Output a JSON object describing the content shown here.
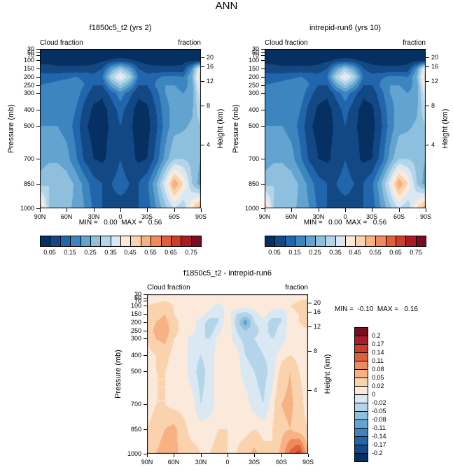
{
  "title": "ANN",
  "palette": [
    "#053061",
    "#124984",
    "#2166ac",
    "#3d85bf",
    "#62a3cf",
    "#8ec0dd",
    "#b4d5e9",
    "#d9e8f3",
    "#fbeadb",
    "#fad3ae",
    "#f7b183",
    "#ef8a5c",
    "#e0603c",
    "#cb3e2c",
    "#ab1b26",
    "#7a0c20"
  ],
  "axes": {
    "pressure_label": "Pressure (mb)",
    "height_label": "Height (km)",
    "pressure_ticks": [
      30,
      50,
      70,
      100,
      150,
      200,
      250,
      300,
      400,
      500,
      700,
      850,
      1000
    ],
    "height_ticks": [
      20,
      16,
      12,
      8,
      4
    ],
    "lat_ticks": [
      "90N",
      "60N",
      "30N",
      "0",
      "30S",
      "60S",
      "90S"
    ]
  },
  "chart_data": [
    {
      "type": "heatmap",
      "title": "f1850c5_t2 (yrs 2)",
      "label_left": "Cloud fraction",
      "label_right": "fraction",
      "stats": "MIN =   0.00  MAX =   0.56",
      "min": 0.0,
      "max": 0.56,
      "xlabel_ticks": [
        "90N",
        "60N",
        "30N",
        "0",
        "30S",
        "60S",
        "90S"
      ],
      "contour_levels": [
        0.05,
        0.1,
        0.15,
        0.2,
        0.25,
        0.3,
        0.35,
        0.4,
        0.45,
        0.5,
        0.55,
        0.6,
        0.65,
        0.7,
        0.75
      ],
      "colorbar_labels": [
        "0.05",
        "0.15",
        "0.25",
        "0.35",
        "0.45",
        "0.55",
        "0.65",
        "0.75"
      ],
      "lats": [
        90,
        80,
        70,
        60,
        50,
        40,
        30,
        20,
        10,
        0,
        -10,
        -20,
        -30,
        -40,
        -50,
        -60,
        -70,
        -80,
        -90
      ],
      "pressures": [
        30,
        50,
        70,
        100,
        150,
        200,
        250,
        300,
        400,
        500,
        700,
        850,
        1000
      ],
      "values": [
        [
          0.01,
          0.01,
          0.01,
          0.01,
          0.01,
          0.01,
          0.01,
          0.01,
          0.01,
          0.01,
          0.01,
          0.01,
          0.01,
          0.01,
          0.01,
          0.01,
          0.01,
          0.01,
          0.01
        ],
        [
          0.01,
          0.01,
          0.01,
          0.01,
          0.01,
          0.01,
          0.01,
          0.01,
          0.01,
          0.01,
          0.01,
          0.01,
          0.01,
          0.01,
          0.01,
          0.01,
          0.01,
          0.01,
          0.01
        ],
        [
          0.02,
          0.02,
          0.02,
          0.02,
          0.02,
          0.02,
          0.02,
          0.02,
          0.02,
          0.02,
          0.02,
          0.02,
          0.02,
          0.02,
          0.02,
          0.02,
          0.02,
          0.02,
          0.02
        ],
        [
          0.03,
          0.03,
          0.03,
          0.03,
          0.03,
          0.03,
          0.03,
          0.04,
          0.06,
          0.08,
          0.06,
          0.04,
          0.03,
          0.03,
          0.03,
          0.03,
          0.03,
          0.03,
          0.04
        ],
        [
          0.08,
          0.07,
          0.06,
          0.06,
          0.06,
          0.06,
          0.07,
          0.1,
          0.22,
          0.3,
          0.22,
          0.1,
          0.07,
          0.06,
          0.06,
          0.06,
          0.07,
          0.2,
          0.45
        ],
        [
          0.12,
          0.12,
          0.13,
          0.14,
          0.15,
          0.14,
          0.12,
          0.15,
          0.32,
          0.42,
          0.32,
          0.15,
          0.12,
          0.14,
          0.16,
          0.16,
          0.15,
          0.25,
          0.5
        ],
        [
          0.15,
          0.16,
          0.17,
          0.18,
          0.18,
          0.15,
          0.1,
          0.1,
          0.22,
          0.3,
          0.22,
          0.1,
          0.1,
          0.16,
          0.2,
          0.2,
          0.18,
          0.22,
          0.45
        ],
        [
          0.17,
          0.18,
          0.19,
          0.2,
          0.18,
          0.12,
          0.07,
          0.06,
          0.12,
          0.18,
          0.12,
          0.06,
          0.07,
          0.13,
          0.2,
          0.22,
          0.2,
          0.22,
          0.4
        ],
        [
          0.18,
          0.19,
          0.2,
          0.19,
          0.15,
          0.08,
          0.04,
          0.03,
          0.07,
          0.12,
          0.07,
          0.03,
          0.04,
          0.1,
          0.18,
          0.22,
          0.22,
          0.24,
          0.35
        ],
        [
          0.2,
          0.2,
          0.2,
          0.18,
          0.13,
          0.06,
          0.03,
          0.03,
          0.06,
          0.1,
          0.06,
          0.03,
          0.03,
          0.09,
          0.17,
          0.23,
          0.24,
          0.26,
          0.3
        ],
        [
          0.22,
          0.24,
          0.24,
          0.22,
          0.16,
          0.09,
          0.05,
          0.04,
          0.07,
          0.1,
          0.07,
          0.04,
          0.05,
          0.12,
          0.22,
          0.3,
          0.3,
          0.28,
          0.25
        ],
        [
          0.28,
          0.3,
          0.3,
          0.28,
          0.24,
          0.18,
          0.12,
          0.1,
          0.1,
          0.12,
          0.1,
          0.1,
          0.14,
          0.24,
          0.38,
          0.55,
          0.45,
          0.3,
          0.22
        ],
        [
          0.52,
          0.3,
          0.28,
          0.26,
          0.24,
          0.2,
          0.14,
          0.1,
          0.08,
          0.08,
          0.08,
          0.1,
          0.12,
          0.2,
          0.28,
          0.35,
          0.3,
          0.45,
          0.55
        ]
      ]
    },
    {
      "type": "heatmap",
      "title": "intrepid-run6 (yrs 10)",
      "label_left": "Cloud fraction",
      "label_right": "fraction",
      "stats": "MIN =   0.00  MAX =   0.56",
      "min": 0.0,
      "max": 0.56,
      "xlabel_ticks": [
        "90N",
        "60N",
        "30N",
        "0",
        "30S",
        "60S",
        "90S"
      ],
      "contour_levels": [
        0.05,
        0.1,
        0.15,
        0.2,
        0.25,
        0.3,
        0.35,
        0.4,
        0.45,
        0.5,
        0.55,
        0.6,
        0.65,
        0.7,
        0.75
      ],
      "colorbar_labels": [
        "0.05",
        "0.15",
        "0.25",
        "0.35",
        "0.45",
        "0.55",
        "0.65",
        "0.75"
      ],
      "lats": [
        90,
        80,
        70,
        60,
        50,
        40,
        30,
        20,
        10,
        0,
        -10,
        -20,
        -30,
        -40,
        -50,
        -60,
        -70,
        -80,
        -90
      ],
      "pressures": [
        30,
        50,
        70,
        100,
        150,
        200,
        250,
        300,
        400,
        500,
        700,
        850,
        1000
      ],
      "values": [
        [
          0.01,
          0.01,
          0.01,
          0.01,
          0.01,
          0.01,
          0.01,
          0.01,
          0.01,
          0.01,
          0.01,
          0.01,
          0.01,
          0.01,
          0.01,
          0.01,
          0.01,
          0.01,
          0.01
        ],
        [
          0.01,
          0.01,
          0.01,
          0.01,
          0.01,
          0.01,
          0.01,
          0.01,
          0.01,
          0.01,
          0.01,
          0.01,
          0.01,
          0.01,
          0.01,
          0.01,
          0.01,
          0.01,
          0.01
        ],
        [
          0.02,
          0.02,
          0.02,
          0.02,
          0.02,
          0.02,
          0.02,
          0.02,
          0.02,
          0.02,
          0.02,
          0.02,
          0.02,
          0.02,
          0.02,
          0.02,
          0.02,
          0.02,
          0.02
        ],
        [
          0.03,
          0.03,
          0.03,
          0.03,
          0.03,
          0.03,
          0.03,
          0.04,
          0.06,
          0.08,
          0.06,
          0.04,
          0.03,
          0.03,
          0.03,
          0.03,
          0.03,
          0.03,
          0.04
        ],
        [
          0.08,
          0.07,
          0.06,
          0.06,
          0.06,
          0.06,
          0.07,
          0.1,
          0.22,
          0.3,
          0.22,
          0.1,
          0.07,
          0.06,
          0.06,
          0.06,
          0.07,
          0.2,
          0.45
        ],
        [
          0.12,
          0.12,
          0.13,
          0.14,
          0.15,
          0.14,
          0.12,
          0.15,
          0.32,
          0.42,
          0.32,
          0.15,
          0.12,
          0.14,
          0.16,
          0.16,
          0.15,
          0.25,
          0.5
        ],
        [
          0.15,
          0.16,
          0.17,
          0.18,
          0.18,
          0.15,
          0.1,
          0.1,
          0.22,
          0.3,
          0.22,
          0.1,
          0.1,
          0.16,
          0.2,
          0.2,
          0.18,
          0.22,
          0.45
        ],
        [
          0.17,
          0.18,
          0.19,
          0.2,
          0.18,
          0.12,
          0.07,
          0.06,
          0.12,
          0.18,
          0.12,
          0.06,
          0.07,
          0.13,
          0.2,
          0.22,
          0.2,
          0.22,
          0.4
        ],
        [
          0.18,
          0.19,
          0.2,
          0.19,
          0.15,
          0.08,
          0.04,
          0.03,
          0.07,
          0.12,
          0.07,
          0.03,
          0.04,
          0.1,
          0.18,
          0.22,
          0.22,
          0.24,
          0.35
        ],
        [
          0.2,
          0.2,
          0.2,
          0.18,
          0.13,
          0.06,
          0.03,
          0.03,
          0.06,
          0.1,
          0.06,
          0.03,
          0.03,
          0.09,
          0.17,
          0.23,
          0.24,
          0.26,
          0.3
        ],
        [
          0.22,
          0.24,
          0.24,
          0.22,
          0.16,
          0.09,
          0.05,
          0.04,
          0.07,
          0.1,
          0.07,
          0.04,
          0.05,
          0.12,
          0.22,
          0.3,
          0.3,
          0.28,
          0.25
        ],
        [
          0.28,
          0.3,
          0.3,
          0.28,
          0.24,
          0.18,
          0.12,
          0.1,
          0.1,
          0.12,
          0.1,
          0.1,
          0.14,
          0.24,
          0.38,
          0.55,
          0.45,
          0.3,
          0.22
        ],
        [
          0.52,
          0.3,
          0.28,
          0.26,
          0.24,
          0.2,
          0.14,
          0.1,
          0.08,
          0.08,
          0.08,
          0.1,
          0.12,
          0.2,
          0.28,
          0.35,
          0.3,
          0.45,
          0.55
        ]
      ]
    },
    {
      "type": "heatmap",
      "title": "f1850c5_t2 - intrepid-run6",
      "label_left": "Cloud fraction",
      "label_right": "fraction",
      "stats": "MIN =  -0.10  MAX =   0.16",
      "min": -0.1,
      "max": 0.16,
      "xlabel_ticks": [
        "90N",
        "60N",
        "30N",
        "0",
        "30S",
        "60S",
        "90S"
      ],
      "contour_levels": [
        -0.2,
        -0.17,
        -0.14,
        -0.11,
        -0.08,
        -0.05,
        -0.02,
        0,
        0.02,
        0.05,
        0.08,
        0.11,
        0.14,
        0.17,
        0.2
      ],
      "colorbar_labels": [
        "0.2",
        "0.17",
        "0.14",
        "0.11",
        "0.08",
        "0.05",
        "0.02",
        "0",
        "-0.02",
        "-0.05",
        "-0.08",
        "-0.11",
        "-0.14",
        "-0.17",
        "-0.2"
      ],
      "lats": [
        90,
        80,
        70,
        60,
        50,
        40,
        30,
        20,
        10,
        0,
        -10,
        -20,
        -30,
        -40,
        -50,
        -60,
        -70,
        -80,
        -90
      ],
      "pressures": [
        30,
        50,
        70,
        100,
        150,
        200,
        250,
        300,
        400,
        500,
        700,
        850,
        1000
      ],
      "values": [
        [
          0.01,
          0.01,
          0.01,
          0.01,
          0.01,
          0.01,
          0.01,
          0.01,
          0.01,
          0.01,
          0.01,
          0.01,
          0.01,
          0.01,
          0.01,
          0.01,
          0.01,
          0.01,
          0.01
        ],
        [
          0.01,
          0.01,
          0.01,
          0.01,
          0.01,
          0.01,
          0.01,
          0.01,
          0.01,
          0.01,
          0.01,
          0.01,
          0.01,
          0.01,
          0.01,
          0.01,
          0.01,
          0.01,
          0.01
        ],
        [
          0.01,
          0.01,
          0.02,
          0.01,
          0.01,
          0.01,
          0.01,
          0.01,
          0.01,
          0.01,
          0.01,
          0.01,
          0.01,
          0.01,
          0.01,
          0.01,
          0.01,
          0.02,
          0.03
        ],
        [
          0.02,
          0.03,
          0.04,
          0.02,
          0.01,
          0.01,
          0.01,
          0.01,
          -0.01,
          0.01,
          0.01,
          0.01,
          0.01,
          0.01,
          0.01,
          0.01,
          0.02,
          0.03,
          0.04
        ],
        [
          0.02,
          0.04,
          0.05,
          0.02,
          0.01,
          0.01,
          0.01,
          -0.01,
          -0.02,
          0.01,
          -0.02,
          -0.03,
          -0.01,
          0.01,
          -0.01,
          -0.02,
          0.01,
          0.02,
          0.05
        ],
        [
          0.02,
          0.05,
          0.06,
          0.03,
          0.01,
          0.01,
          -0.01,
          -0.03,
          -0.02,
          0.02,
          -0.03,
          -0.1,
          -0.02,
          -0.01,
          -0.03,
          -0.02,
          0.01,
          0.02,
          0.03
        ],
        [
          0.03,
          0.06,
          0.07,
          0.03,
          0.01,
          0.01,
          -0.01,
          -0.03,
          -0.01,
          0.02,
          -0.02,
          -0.05,
          -0.03,
          -0.01,
          -0.03,
          -0.01,
          0.01,
          0.01,
          0.02
        ],
        [
          0.02,
          0.05,
          0.06,
          0.02,
          0.01,
          -0.01,
          -0.02,
          -0.02,
          0.01,
          0.01,
          -0.01,
          -0.03,
          -0.02,
          -0.01,
          -0.02,
          -0.01,
          0.01,
          0.01,
          0.02
        ],
        [
          0.01,
          0.02,
          0.03,
          0.01,
          0.01,
          -0.01,
          -0.02,
          -0.01,
          0.01,
          0.01,
          0.01,
          -0.02,
          -0.03,
          -0.02,
          -0.01,
          0.01,
          0.02,
          0.01,
          0.01
        ],
        [
          0.01,
          0.02,
          0.02,
          0.01,
          0.01,
          -0.01,
          -0.03,
          -0.01,
          0.01,
          0.02,
          0.01,
          -0.01,
          -0.02,
          -0.03,
          -0.01,
          0.03,
          0.05,
          0.02,
          0.01
        ],
        [
          0.01,
          0.02,
          0.02,
          0.01,
          0.01,
          0.01,
          -0.02,
          -0.01,
          0.01,
          0.02,
          0.01,
          0.01,
          -0.01,
          -0.02,
          0.01,
          0.05,
          0.06,
          0.03,
          0.01
        ],
        [
          0.02,
          0.03,
          0.05,
          0.06,
          0.03,
          0.01,
          0.01,
          0.01,
          0.02,
          0.02,
          0.01,
          0.01,
          0.02,
          0.01,
          0.02,
          0.04,
          0.05,
          0.03,
          0.02
        ],
        [
          0.03,
          0.05,
          0.07,
          0.06,
          0.04,
          0.03,
          0.02,
          0.02,
          0.03,
          0.02,
          0.02,
          0.04,
          0.06,
          0.03,
          0.02,
          0.06,
          0.12,
          0.16,
          0.05
        ]
      ]
    }
  ]
}
